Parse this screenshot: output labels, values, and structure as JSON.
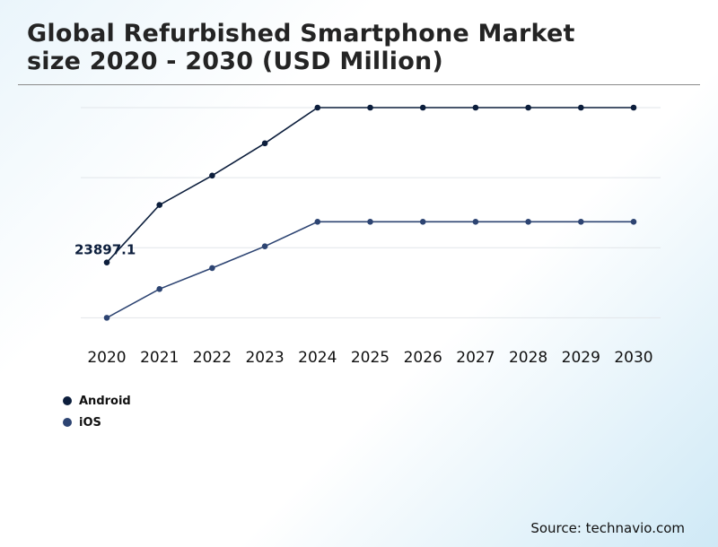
{
  "header": {
    "title_line1": "Global Refurbished Smartphone Market",
    "title_line2": "size 2020 - 2030 (USD Million)"
  },
  "source": "Source: technavio.com",
  "colors": {
    "android": "#0c1e3c",
    "ios": "#2d4472",
    "grid": "#e2e6ea",
    "title": "#242424"
  },
  "chart_data": {
    "type": "line",
    "title": "Global Refurbished Smartphone Market size 2020 - 2030 (USD Million)",
    "xlabel": "",
    "ylabel": "",
    "categories": [
      "2020",
      "2021",
      "2022",
      "2023",
      "2024",
      "2025",
      "2026",
      "2027",
      "2028",
      "2029",
      "2030"
    ],
    "ylim": [
      14000,
      46000
    ],
    "gridlines": [
      16000,
      26000,
      36000,
      46000
    ],
    "series": [
      {
        "name": "Android",
        "color": "#0c1e3c",
        "values": [
          23897.1,
          32100,
          36300,
          40900,
          46000,
          46000,
          46000,
          46000,
          46000,
          46000,
          46000
        ]
      },
      {
        "name": "iOS",
        "color": "#2d4472",
        "values": [
          16000,
          20100,
          23100,
          26200,
          29700,
          29700,
          29700,
          29700,
          29700,
          29700,
          29700
        ]
      }
    ],
    "annotations": [
      {
        "series": "Android",
        "category": "2020",
        "text": "23897.1"
      }
    ],
    "legend": {
      "position": "bottom-left",
      "entries": [
        "Android",
        "iOS"
      ]
    }
  }
}
